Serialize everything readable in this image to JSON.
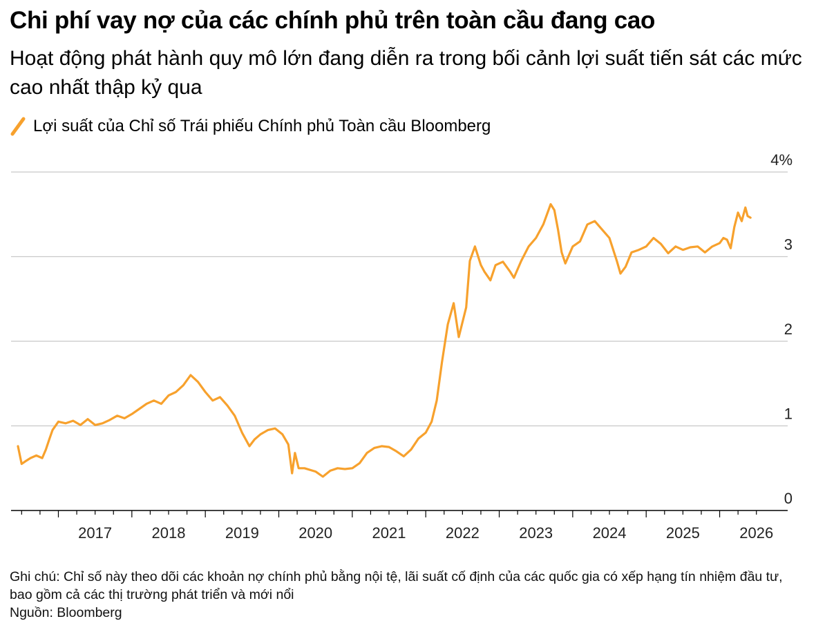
{
  "header": {
    "title": "Chi phí vay nợ của các chính phủ trên toàn cầu đang cao",
    "subtitle": "Hoạt động phát hành quy mô lớn đang diễn ra trong bối cảnh lợi suất tiến sát các mức cao nhất thập kỷ qua"
  },
  "legend": {
    "label": "Lợi suất của Chỉ số Trái phiếu Chính phủ Toàn cầu Bloomberg",
    "color": "#f7a12d"
  },
  "footer": {
    "note": "Ghi chú: Chỉ số này theo dõi các khoản nợ chính phủ bằng nội tệ, lãi suất cố định của các quốc gia có xếp hạng tín nhiệm đầu tư, bao gồm cả các thị trường phát triển và mới nổi",
    "source": "Nguồn: Bloomberg"
  },
  "chart_data": {
    "type": "line",
    "title": "Chi phí vay nợ của các chính phủ trên toàn cầu đang cao",
    "subtitle": "Hoạt động phát hành quy mô lớn đang diễn ra trong bối cảnh lợi suất tiến sát các mức cao nhất thập kỷ qua",
    "xlabel": "",
    "ylabel": "",
    "x_tick_labels": [
      "2017",
      "2018",
      "2019",
      "2020",
      "2021",
      "2022",
      "2023",
      "2024",
      "2025",
      "2026"
    ],
    "y_tick_labels": [
      "0",
      "1",
      "2",
      "3",
      "4%"
    ],
    "y_ticks": [
      0,
      1,
      2,
      3,
      4
    ],
    "ylim": [
      0,
      4
    ],
    "xlim": [
      2016.45,
      2026.7
    ],
    "grid": true,
    "legend_position": "top-left",
    "series": [
      {
        "name": "Lợi suất của Chỉ số Trái phiếu Chính phủ Toàn cầu Bloomberg",
        "color": "#f7a12d",
        "x": [
          2016.45,
          2016.5,
          2016.55,
          2016.62,
          2016.7,
          2016.78,
          2016.83,
          2016.88,
          2016.92,
          2017.0,
          2017.1,
          2017.2,
          2017.3,
          2017.4,
          2017.5,
          2017.6,
          2017.7,
          2017.8,
          2017.9,
          2018.0,
          2018.1,
          2018.2,
          2018.3,
          2018.4,
          2018.5,
          2018.6,
          2018.7,
          2018.8,
          2018.9,
          2019.0,
          2019.1,
          2019.2,
          2019.3,
          2019.4,
          2019.5,
          2019.6,
          2019.67,
          2019.75,
          2019.85,
          2019.95,
          2020.05,
          2020.13,
          2020.18,
          2020.22,
          2020.27,
          2020.35,
          2020.5,
          2020.6,
          2020.7,
          2020.8,
          2020.9,
          2021.0,
          2021.1,
          2021.2,
          2021.3,
          2021.4,
          2021.5,
          2021.6,
          2021.7,
          2021.8,
          2021.9,
          2022.0,
          2022.08,
          2022.15,
          2022.22,
          2022.3,
          2022.38,
          2022.45,
          2022.55,
          2022.6,
          2022.67,
          2022.75,
          2022.8,
          2022.88,
          2022.95,
          2023.05,
          2023.15,
          2023.2,
          2023.3,
          2023.4,
          2023.5,
          2023.6,
          2023.7,
          2023.75,
          2023.8,
          2023.85,
          2023.9,
          2024.0,
          2024.1,
          2024.2,
          2024.3,
          2024.4,
          2024.5,
          2024.6,
          2024.65,
          2024.72,
          2024.8,
          2024.9,
          2025.0,
          2025.1,
          2025.2,
          2025.3,
          2025.4,
          2025.5,
          2025.6,
          2025.7,
          2025.8,
          2025.9,
          2026.0,
          2026.05,
          2026.1,
          2026.15,
          2026.2,
          2026.25,
          2026.3,
          2026.35,
          2026.38,
          2026.42
        ],
        "y": [
          0.76,
          0.55,
          0.58,
          0.62,
          0.65,
          0.62,
          0.72,
          0.85,
          0.95,
          1.05,
          1.03,
          1.06,
          1.01,
          1.08,
          1.01,
          1.03,
          1.07,
          1.12,
          1.09,
          1.14,
          1.2,
          1.26,
          1.3,
          1.26,
          1.36,
          1.4,
          1.48,
          1.6,
          1.52,
          1.4,
          1.3,
          1.34,
          1.24,
          1.12,
          0.92,
          0.76,
          0.84,
          0.9,
          0.95,
          0.97,
          0.9,
          0.78,
          0.44,
          0.68,
          0.5,
          0.5,
          0.46,
          0.4,
          0.47,
          0.5,
          0.49,
          0.5,
          0.56,
          0.68,
          0.74,
          0.76,
          0.75,
          0.7,
          0.64,
          0.72,
          0.85,
          0.92,
          1.05,
          1.3,
          1.75,
          2.2,
          2.45,
          2.05,
          2.4,
          2.95,
          3.12,
          2.9,
          2.82,
          2.72,
          2.9,
          2.94,
          2.82,
          2.75,
          2.95,
          3.12,
          3.22,
          3.38,
          3.62,
          3.55,
          3.32,
          3.05,
          2.92,
          3.12,
          3.18,
          3.38,
          3.42,
          3.32,
          3.22,
          2.95,
          2.8,
          2.88,
          3.05,
          3.08,
          3.12,
          3.22,
          3.15,
          3.04,
          3.12,
          3.08,
          3.11,
          3.12,
          3.05,
          3.12,
          3.16,
          3.22,
          3.2,
          3.1,
          3.35,
          3.52,
          3.42,
          3.58,
          3.48,
          3.46
        ]
      }
    ]
  }
}
